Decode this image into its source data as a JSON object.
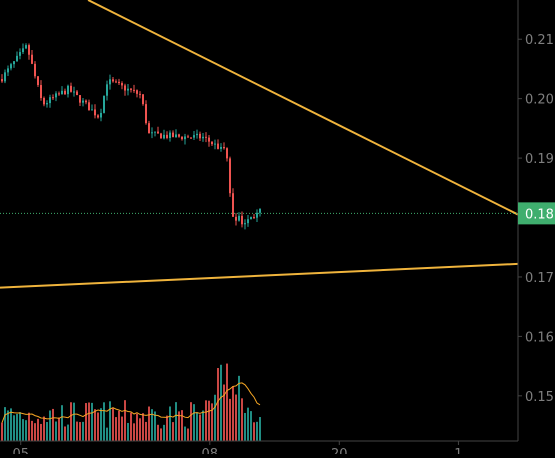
{
  "chart_data": {
    "type": "candlestick",
    "symbol": "",
    "price_axis": {
      "ticks": [
        "0.21",
        "0.20",
        "0.19",
        "0.18",
        "0.17",
        "0.16",
        "0.15"
      ],
      "tick_values": [
        0.21,
        0.2,
        0.19,
        0.18,
        0.17,
        0.16,
        0.15
      ],
      "range": [
        0.1424,
        0.2166
      ]
    },
    "time_axis": {
      "ticks": [
        "05",
        "08",
        "20",
        "1"
      ],
      "tick_positions": [
        0.04,
        0.405,
        0.655,
        0.885
      ]
    },
    "last_price": {
      "label": "0.18",
      "value": 0.1807
    },
    "candles_close_path": [
      [
        0.0,
        0.2033
      ],
      [
        0.05,
        0.2088
      ],
      [
        0.08,
        0.199
      ],
      [
        0.13,
        0.2016
      ],
      [
        0.19,
        0.1969
      ],
      [
        0.205,
        0.203
      ],
      [
        0.27,
        0.2006
      ],
      [
        0.285,
        0.194
      ],
      [
        0.34,
        0.1936
      ],
      [
        0.39,
        0.1935
      ],
      [
        0.42,
        0.1918
      ],
      [
        0.435,
        0.1915
      ],
      [
        0.445,
        0.1805
      ],
      [
        0.47,
        0.1792
      ],
      [
        0.5,
        0.181
      ]
    ],
    "volume_range": [
      0,
      1
    ],
    "trendlines": [
      {
        "points": [
          [
            0.17,
            0.2166
          ],
          [
            1.0,
            0.1805
          ]
        ],
        "color": "#f0b43c"
      },
      {
        "points": [
          [
            0.0,
            0.1682
          ],
          [
            1.0,
            0.1722
          ]
        ],
        "color": "#f0b43c"
      }
    ],
    "colors": {
      "up": "#26a69a",
      "down": "#ef5350",
      "volume_ma": "#f5a623",
      "price_tag": "#3fae6e",
      "trendline": "#f0b43c",
      "axis_text": "#7f7f7f"
    }
  }
}
